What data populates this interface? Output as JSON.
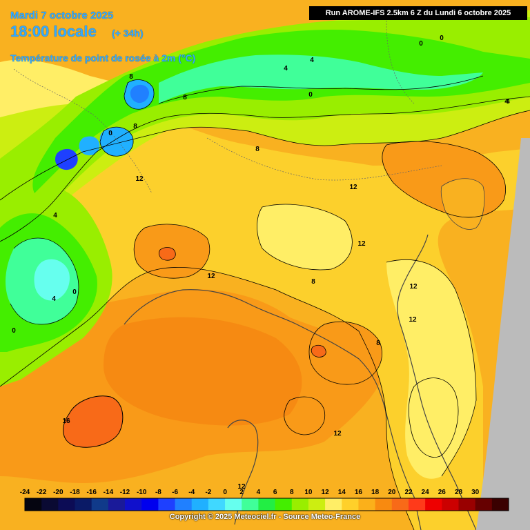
{
  "header": {
    "date": "Mardi 7 octobre 2025",
    "time": "18:00 locale",
    "lead": "(+ 34h)",
    "parameter": "Température de point de rosée à 2m (°C)",
    "run": "Run AROME-IFS 2.5km 6 Z du Lundi 6 octobre 2025"
  },
  "footer": {
    "copyright": "Copyright © 2025 Meteociel.fr - Source Meteo-France"
  },
  "legend": {
    "ticks": [
      "-24",
      "-22",
      "-20",
      "-18",
      "-16",
      "-14",
      "-12",
      "-10",
      "-8",
      "-6",
      "-4",
      "-2",
      "0",
      "2",
      "4",
      "6",
      "8",
      "10",
      "12",
      "14",
      "16",
      "18",
      "20",
      "22",
      "24",
      "26",
      "28",
      "30"
    ],
    "colors": [
      "#050510",
      "#0a0a33",
      "#0c0c55",
      "#0a1a66",
      "#103a8a",
      "#1a1a99",
      "#1010cc",
      "#0000ee",
      "#1e40ff",
      "#2080ff",
      "#20b0ff",
      "#40d8ff",
      "#66ffee",
      "#40ff99",
      "#22ee44",
      "#44ee00",
      "#99ee00",
      "#ccee11",
      "#ffee66",
      "#ffd02a",
      "#fbb01a",
      "#f88a10",
      "#f86a18",
      "#ff3a1a",
      "#ee0000",
      "#cc0000",
      "#990000",
      "#660000",
      "#3a0000"
    ]
  },
  "contour_labels": [
    {
      "text": "0"
    },
    {
      "text": "0"
    },
    {
      "text": "4"
    },
    {
      "text": "4"
    },
    {
      "text": "8"
    },
    {
      "text": "8"
    },
    {
      "text": "0"
    },
    {
      "text": "0"
    },
    {
      "text": "4"
    },
    {
      "text": "8"
    },
    {
      "text": "12"
    },
    {
      "text": "12"
    },
    {
      "text": "12"
    },
    {
      "text": "12"
    },
    {
      "text": "12"
    },
    {
      "text": "8"
    },
    {
      "text": "12"
    },
    {
      "text": "8"
    },
    {
      "text": "4"
    },
    {
      "text": "0"
    },
    {
      "text": "0"
    },
    {
      "text": "4"
    },
    {
      "text": "16"
    },
    {
      "text": "12"
    },
    {
      "text": "8"
    },
    {
      "text": "12"
    },
    {
      "text": "4"
    }
  ]
}
